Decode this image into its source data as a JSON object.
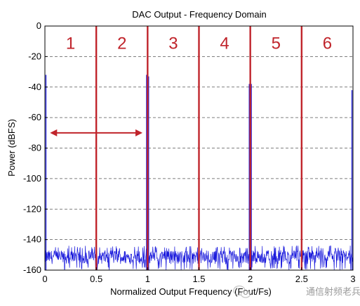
{
  "chart_data": {
    "type": "line",
    "title": "DAC Output - Frequency Domain",
    "xlabel": "Normalized Output Frequency (Fout/Fs)",
    "ylabel": "Power (dBFS)",
    "xlim": [
      0,
      3
    ],
    "ylim": [
      -160,
      0
    ],
    "x_ticks": [
      "0",
      "0.5",
      "1",
      "1.5",
      "2",
      "2.5",
      "3"
    ],
    "y_ticks": [
      "0",
      "-20",
      "-40",
      "-60",
      "-80",
      "-100",
      "-120",
      "-140",
      "-160"
    ],
    "grid": "horizontal-dashed",
    "noise_floor_range": [
      -160,
      -144
    ],
    "spectral_lines": [
      {
        "x": 0.01,
        "y": -32
      },
      {
        "x": 0.99,
        "y": -32
      },
      {
        "x": 1.01,
        "y": -33
      },
      {
        "x": 1.99,
        "y": -38
      },
      {
        "x": 2.01,
        "y": -38
      },
      {
        "x": 2.99,
        "y": -42
      }
    ],
    "nyquist_zone_boundaries": [
      0.5,
      1,
      1.5,
      2,
      2.5
    ],
    "nyquist_zone_labels": [
      "1",
      "2",
      "3",
      "4",
      "5",
      "6"
    ],
    "annotation_arrow": {
      "y": -70,
      "x_start": 0.05,
      "x_end": 0.95
    },
    "colors": {
      "trace": "#1a1adc",
      "zone_lines": "#c0242b",
      "grid": "#555555"
    }
  },
  "watermark": {
    "text": "通信射频老兵",
    "icon": "wechat-icon"
  }
}
